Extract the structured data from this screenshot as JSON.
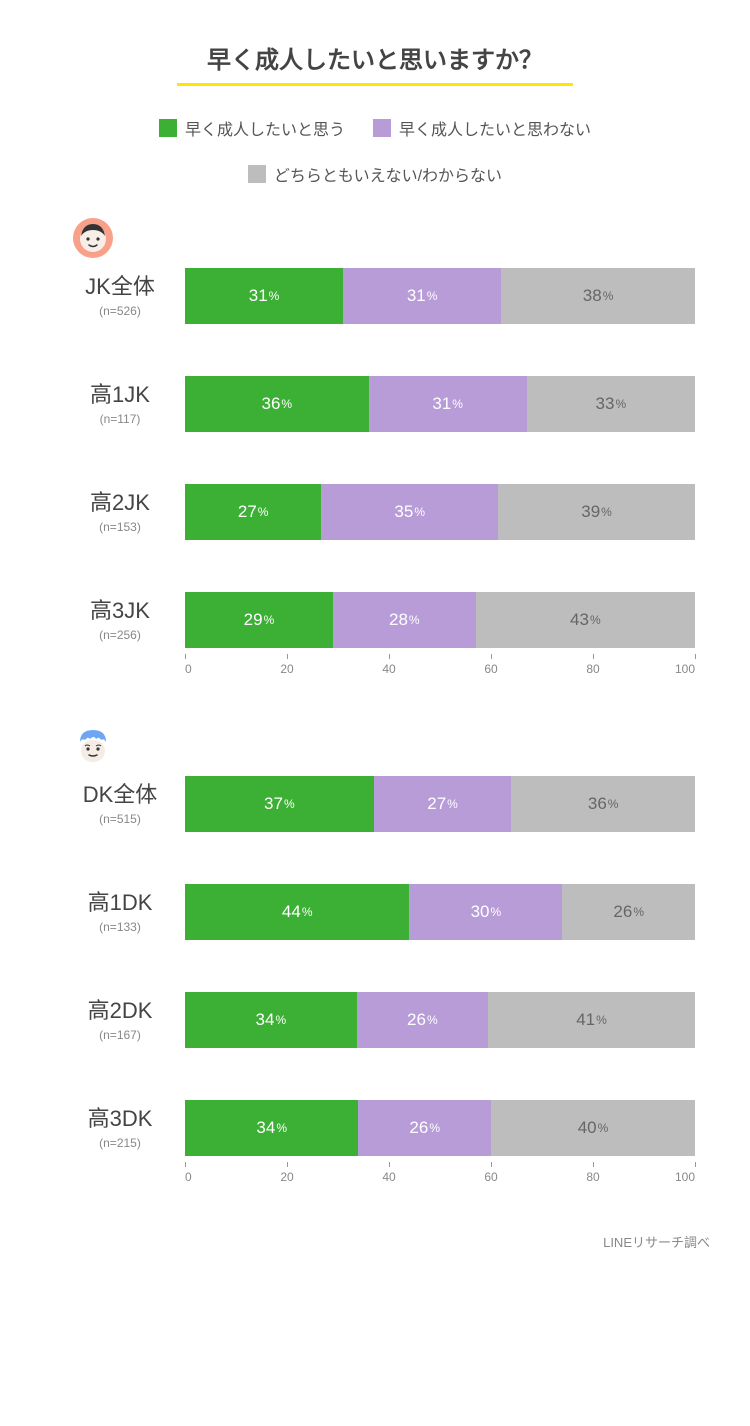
{
  "title": "早く成人したいと思いますか？",
  "title_underline_color": "#ffe600",
  "legend": [
    {
      "label": "早く成人したいと思う",
      "color": "#3cb034"
    },
    {
      "label": "早く成人したいと思わない",
      "color": "#b89cd8"
    },
    {
      "label": "どちらともいえない/わからない",
      "color": "#bdbdbd"
    }
  ],
  "series_text_colors": [
    "#ffffff",
    "#ffffff",
    "#666666"
  ],
  "axis": {
    "min": 0,
    "max": 100,
    "ticks": [
      0,
      20,
      40,
      60,
      80,
      100
    ]
  },
  "groups": [
    {
      "avatar": "girl",
      "avatar_colors": {
        "ring": "#f8a08a",
        "face": "#f7eee7",
        "features": "#333333",
        "hair": "#333333"
      },
      "rows": [
        {
          "name": "JK全体",
          "n": "(n=526)",
          "values": [
            31,
            31,
            38
          ]
        },
        {
          "name": "高1JK",
          "n": "(n=117)",
          "values": [
            36,
            31,
            33
          ]
        },
        {
          "name": "高2JK",
          "n": "(n=153)",
          "values": [
            27,
            35,
            39
          ]
        },
        {
          "name": "高3JK",
          "n": "(n=256)",
          "values": [
            29,
            28,
            43
          ]
        }
      ]
    },
    {
      "avatar": "boy",
      "avatar_colors": {
        "hair": "#6ea6f4",
        "face": "#f5ede5",
        "features": "#333333"
      },
      "rows": [
        {
          "name": "DK全体",
          "n": "(n=515)",
          "values": [
            37,
            27,
            36
          ]
        },
        {
          "name": "高1DK",
          "n": "(n=133)",
          "values": [
            44,
            30,
            26
          ]
        },
        {
          "name": "高2DK",
          "n": "(n=167)",
          "values": [
            34,
            26,
            41
          ]
        },
        {
          "name": "高3DK",
          "n": "(n=215)",
          "values": [
            34,
            26,
            40
          ]
        }
      ]
    }
  ],
  "credit": "LINEリサーチ調べ"
}
